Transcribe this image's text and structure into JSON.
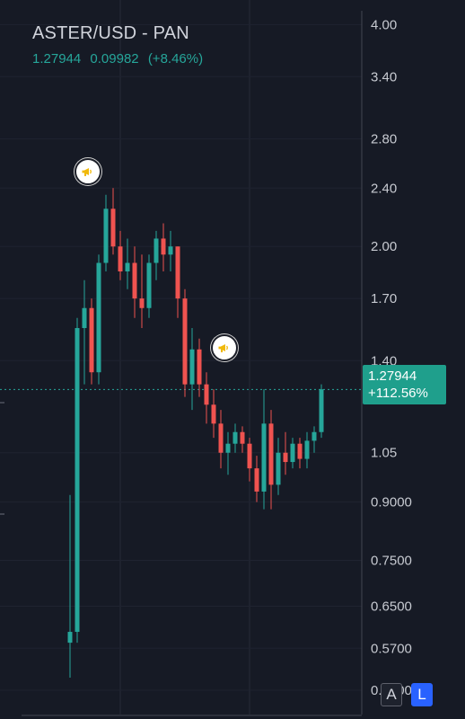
{
  "legend": {
    "symbol": "ASTER/USD - PAN",
    "last": "1.27944",
    "change": "0.09982",
    "change_pct": "(+8.46%)"
  },
  "price_label": {
    "price": "1.27944",
    "pct": "+112.56%"
  },
  "buttons": {
    "auto": "A",
    "log": "L"
  },
  "colors": {
    "up": "#26a69a",
    "down": "#ef5350",
    "background": "#161a25",
    "price_line": "#26a69a",
    "scale_button_active": "#2962ff"
  },
  "events": [
    {
      "icon": "megaphone-icon"
    },
    {
      "icon": "megaphone-icon"
    }
  ],
  "chart_data": {
    "type": "candlestick",
    "scale": "log",
    "y_ticks": [
      "4.00",
      "3.40",
      "2.80",
      "2.40",
      "2.00",
      "1.70",
      "1.40",
      "1.05",
      "0.9000",
      "0.7500",
      "0.6500",
      "0.5700",
      "0.5000"
    ],
    "y_tick_values": [
      4.0,
      3.4,
      2.8,
      2.4,
      2.0,
      1.7,
      1.4,
      1.05,
      0.9,
      0.75,
      0.65,
      0.57,
      0.5
    ],
    "ylim": [
      0.47,
      4.2
    ],
    "last_price": 1.27944,
    "candles": [
      [
        0.58,
        0.92,
        0.52,
        0.6
      ],
      [
        0.6,
        1.6,
        0.58,
        1.55
      ],
      [
        1.55,
        1.8,
        1.3,
        1.65
      ],
      [
        1.65,
        1.7,
        1.3,
        1.35
      ],
      [
        1.35,
        1.95,
        1.3,
        1.9
      ],
      [
        1.9,
        2.35,
        1.85,
        2.25
      ],
      [
        2.25,
        2.4,
        1.95,
        2.0
      ],
      [
        2.0,
        2.1,
        1.8,
        1.85
      ],
      [
        1.85,
        2.05,
        1.75,
        1.9
      ],
      [
        1.9,
        2.0,
        1.6,
        1.7
      ],
      [
        1.7,
        1.95,
        1.55,
        1.65
      ],
      [
        1.65,
        1.95,
        1.6,
        1.9
      ],
      [
        1.9,
        2.1,
        1.8,
        2.05
      ],
      [
        2.05,
        2.15,
        1.85,
        1.95
      ],
      [
        1.95,
        2.1,
        1.85,
        2.0
      ],
      [
        2.0,
        2.0,
        1.6,
        1.7
      ],
      [
        1.7,
        1.75,
        1.25,
        1.3
      ],
      [
        1.3,
        1.55,
        1.2,
        1.45
      ],
      [
        1.45,
        1.5,
        1.25,
        1.3
      ],
      [
        1.3,
        1.35,
        1.15,
        1.22
      ],
      [
        1.22,
        1.28,
        1.1,
        1.15
      ],
      [
        1.15,
        1.2,
        1.0,
        1.05
      ],
      [
        1.05,
        1.12,
        0.98,
        1.08
      ],
      [
        1.08,
        1.15,
        1.05,
        1.12
      ],
      [
        1.12,
        1.14,
        1.05,
        1.08
      ],
      [
        1.08,
        1.1,
        0.96,
        1.0
      ],
      [
        1.0,
        1.04,
        0.9,
        0.93
      ],
      [
        0.93,
        1.28,
        0.88,
        1.15
      ],
      [
        1.15,
        1.2,
        0.88,
        0.95
      ],
      [
        0.95,
        1.1,
        0.92,
        1.05
      ],
      [
        1.05,
        1.12,
        0.98,
        1.02
      ],
      [
        1.02,
        1.1,
        1.0,
        1.08
      ],
      [
        1.08,
        1.1,
        1.0,
        1.03
      ],
      [
        1.03,
        1.12,
        1.0,
        1.09
      ],
      [
        1.09,
        1.14,
        1.05,
        1.12
      ],
      [
        1.12,
        1.3,
        1.1,
        1.28
      ]
    ]
  }
}
